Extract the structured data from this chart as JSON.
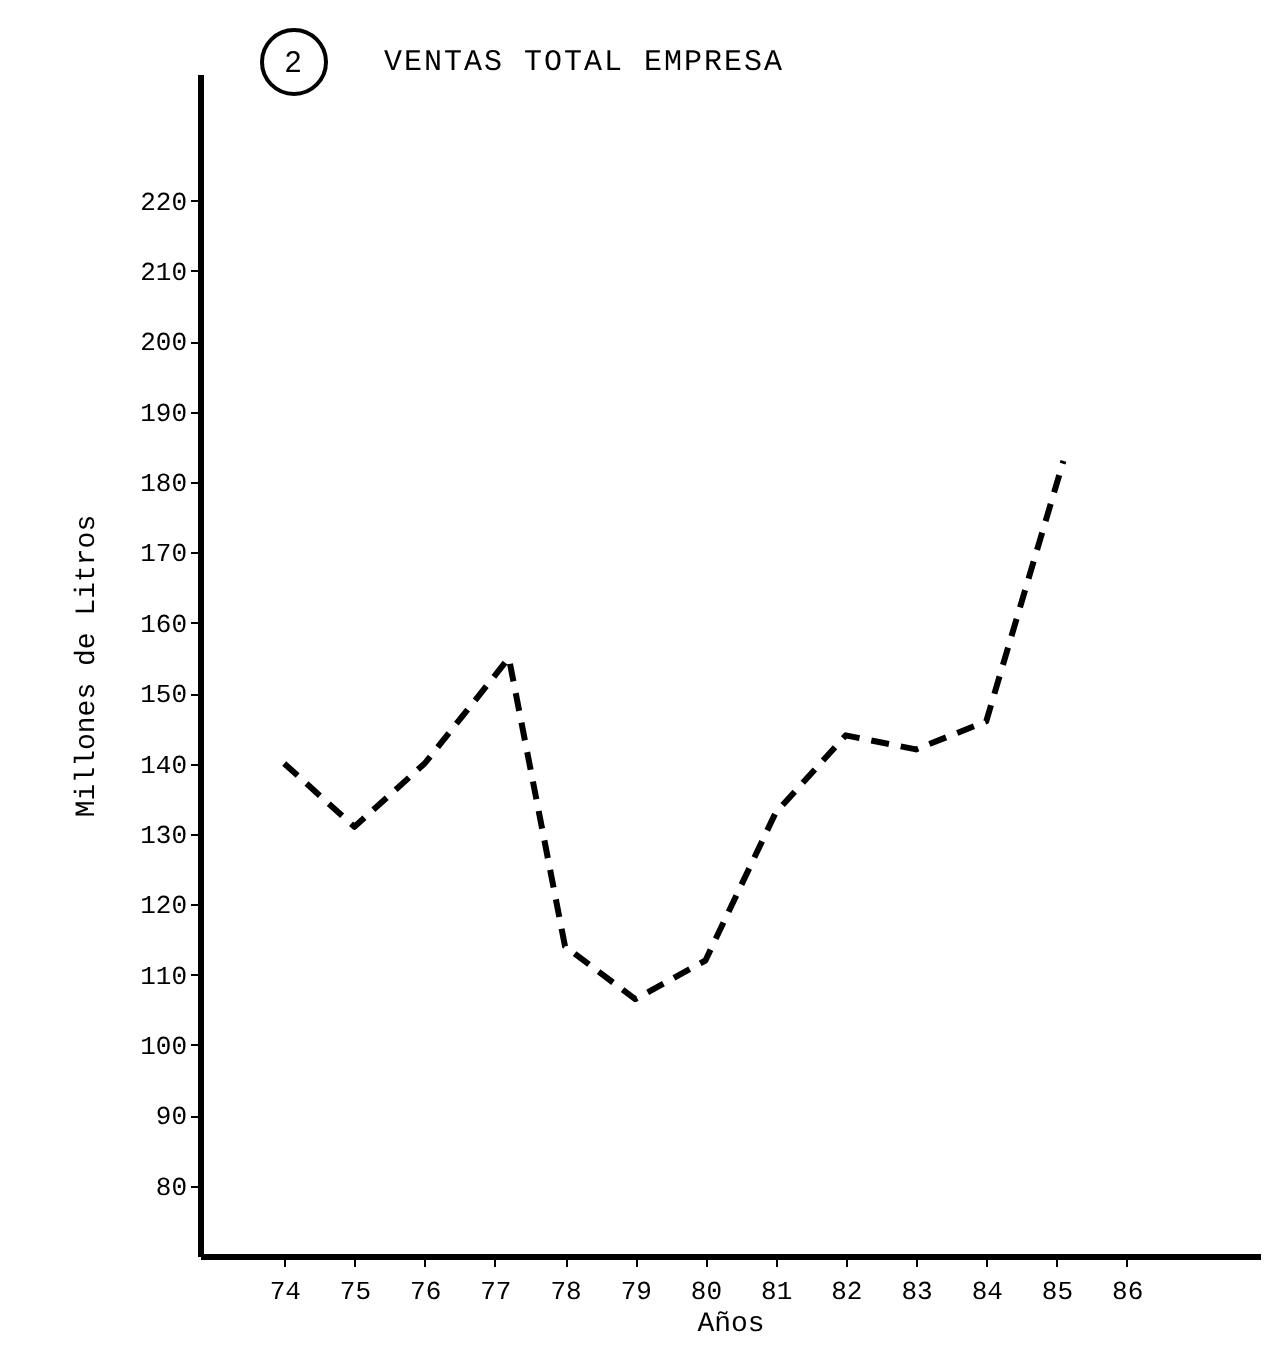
{
  "chart_data": {
    "type": "line",
    "title": "VENTAS TOTAL EMPRESA",
    "annotations": [
      "2"
    ],
    "xlabel": "Años",
    "ylabel": "Millones de Litros",
    "x": [
      74,
      75,
      76,
      77.2,
      78,
      79,
      80,
      81,
      82,
      83,
      84,
      85.1
    ],
    "series": [
      {
        "color": "#000000",
        "values": [
          140,
          131,
          140,
          155,
          114,
          106.5,
          112,
          133,
          144,
          142,
          146,
          183
        ]
      }
    ],
    "xlim": [
      72.8,
      87.9
    ],
    "xticks": [
      74,
      75,
      76,
      77,
      78,
      79,
      80,
      81,
      82,
      83,
      84,
      85,
      86
    ],
    "ylim": [
      70,
      238
    ],
    "yticks": [
      80,
      90,
      100,
      110,
      120,
      130,
      140,
      150,
      160,
      170,
      180,
      190,
      200,
      210,
      220
    ],
    "line_style": "dashed",
    "grid": false
  }
}
